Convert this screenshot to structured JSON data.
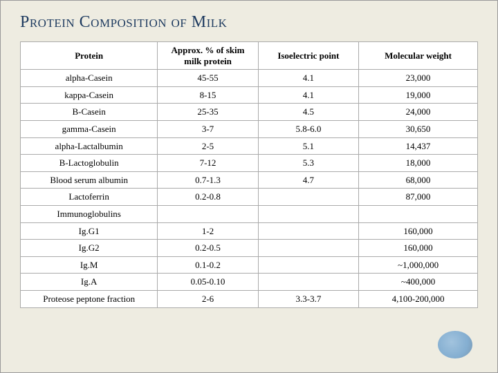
{
  "title": "Protein Composition of Milk",
  "table": {
    "columns": [
      "Protein",
      "Approx. % of skim milk protein",
      "Isoelectric point",
      "Molecular weight"
    ],
    "rows": [
      [
        "alpha-Casein",
        "45-55",
        "4.1",
        "23,000"
      ],
      [
        "kappa-Casein",
        "8-15",
        "4.1",
        "19,000"
      ],
      [
        "B-Casein",
        "25-35",
        "4.5",
        "24,000"
      ],
      [
        "gamma-Casein",
        "3-7",
        "5.8-6.0",
        "30,650"
      ],
      [
        "alpha-Lactalbumin",
        "2-5",
        "5.1",
        "14,437"
      ],
      [
        "B-Lactoglobulin",
        "7-12",
        "5.3",
        "18,000"
      ],
      [
        "Blood serum albumin",
        "0.7-1.3",
        "4.7",
        "68,000"
      ],
      [
        "Lactoferrin",
        "0.2-0.8",
        "",
        "87,000"
      ],
      [
        "Immunoglobulins",
        "",
        "",
        ""
      ],
      [
        "Ig.G1",
        "1-2",
        "",
        "160,000"
      ],
      [
        "Ig.G2",
        "0.2-0.5",
        "",
        "160,000"
      ],
      [
        "Ig.M",
        "0.1-0.2",
        "",
        "~1,000,000"
      ],
      [
        "Ig.A",
        "0.05-0.10",
        "",
        "~400,000"
      ],
      [
        "Proteose peptone fraction",
        "2-6",
        "3.3-3.7",
        "4,100-200,000"
      ]
    ]
  },
  "style": {
    "background_color": "#eeece1",
    "title_color": "#1d3a5f",
    "title_fontsize": 24,
    "cell_fontsize": 13,
    "border_color": "#aaaaaa",
    "table_bg": "#ffffff"
  }
}
